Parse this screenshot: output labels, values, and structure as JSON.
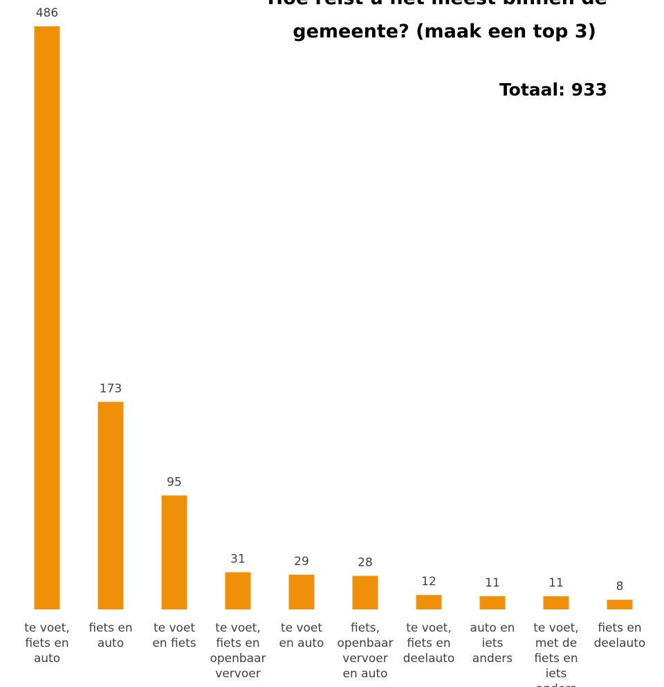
{
  "chart_data": {
    "type": "bar",
    "title_lines": [
      "Hoe reist u het meest binnen de",
      "gemeente? (maak een top 3)"
    ],
    "total_label": "Totaal: 933",
    "bar_color": "#F0900A",
    "categories": [
      "te voet, fiets en auto",
      "fiets en auto",
      "te voet en fiets",
      "te voet, fiets en openbaar vervoer",
      "te voet en auto",
      "fiets, openbaar vervoer en auto",
      "te voet, fiets en deelauto",
      "auto en iets anders",
      "te voet, met de fiets en iets anders",
      "fiets en deelauto"
    ],
    "category_lines": [
      [
        "te voet,",
        "fiets en",
        "auto"
      ],
      [
        "fiets en",
        "auto"
      ],
      [
        "te voet",
        "en fiets"
      ],
      [
        "te voet,",
        "fiets en",
        "openbaar",
        "vervoer"
      ],
      [
        "te voet",
        "en auto"
      ],
      [
        "fiets,",
        "openbaar",
        "vervoer",
        "en auto"
      ],
      [
        "te voet,",
        "fiets en",
        "deelauto"
      ],
      [
        "auto en",
        "iets",
        "anders"
      ],
      [
        "te voet,",
        "met de",
        "fiets en",
        "iets",
        "anders"
      ],
      [
        "fiets en",
        "deelauto"
      ]
    ],
    "values": [
      486,
      173,
      95,
      31,
      29,
      28,
      12,
      11,
      11,
      8
    ],
    "data_labels": [
      "486",
      "173",
      "95",
      "31",
      "29",
      "28",
      "12",
      "11",
      "11",
      "8"
    ],
    "grid": false,
    "legend": "none"
  }
}
